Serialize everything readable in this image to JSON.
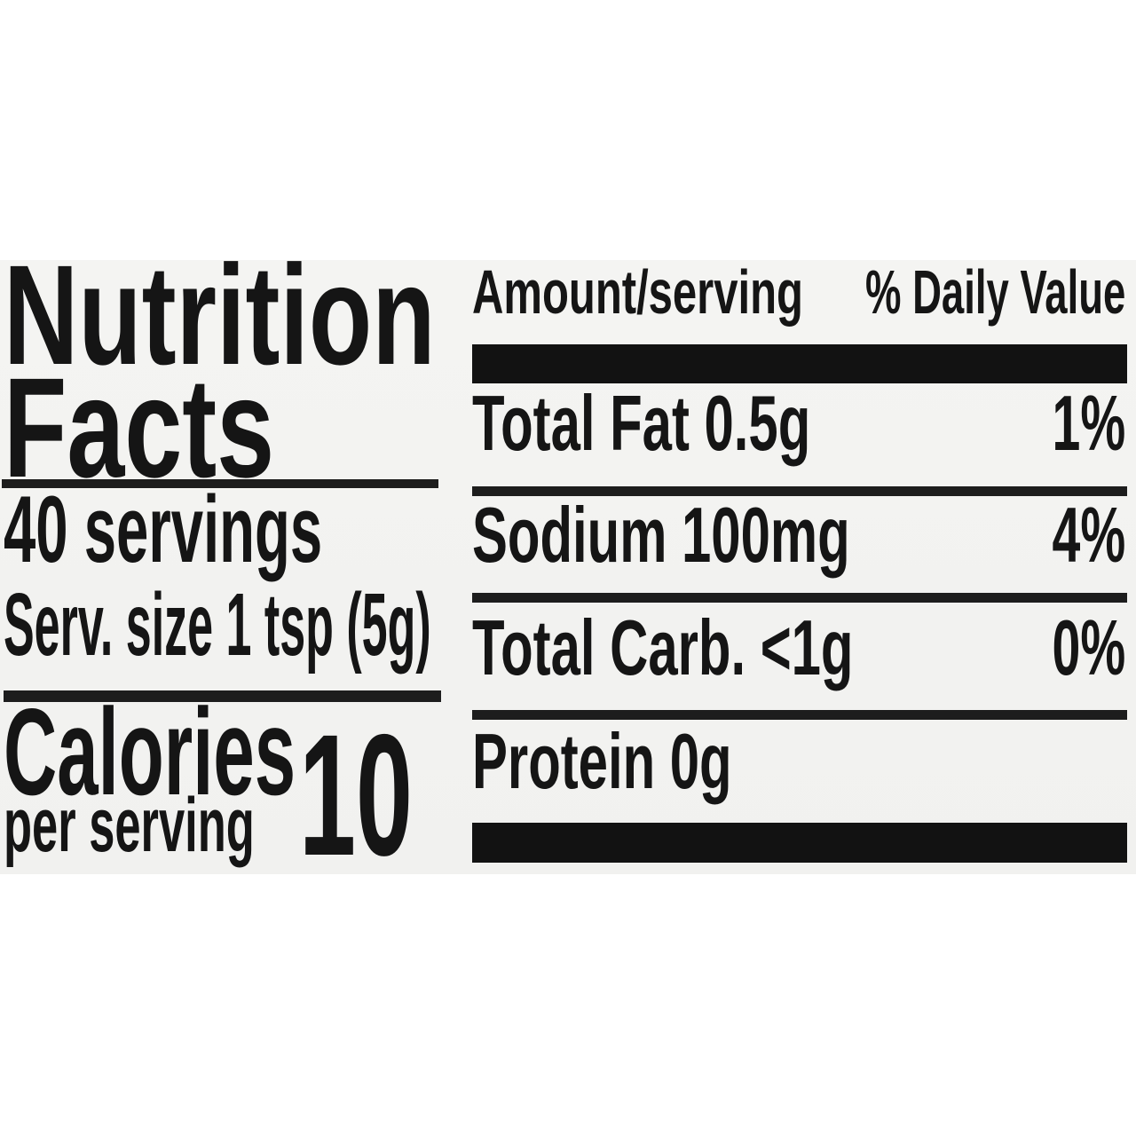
{
  "page": {
    "background": "#ffffff"
  },
  "label": {
    "background": "#f2f2f0",
    "ink_color": "#151515",
    "title_line1": "Nutrition",
    "title_line2": "Facts",
    "servings_text": "40 servings",
    "serving_size_text": "Serv. size 1 tsp (5g)",
    "calories_word": "Calories",
    "calories_subtext": "per serving",
    "calories_value": "10",
    "columns": {
      "amount_header": "Amount/serving",
      "daily_value_header": "% Daily Value"
    },
    "nutrients": [
      {
        "name": "Total Fat 0.5g",
        "daily_value": "1%"
      },
      {
        "name": "Sodium 100mg",
        "daily_value": "4%"
      },
      {
        "name": "Total Carb. <1g",
        "daily_value": "0%"
      },
      {
        "name": "Protein 0g",
        "daily_value": ""
      }
    ]
  }
}
